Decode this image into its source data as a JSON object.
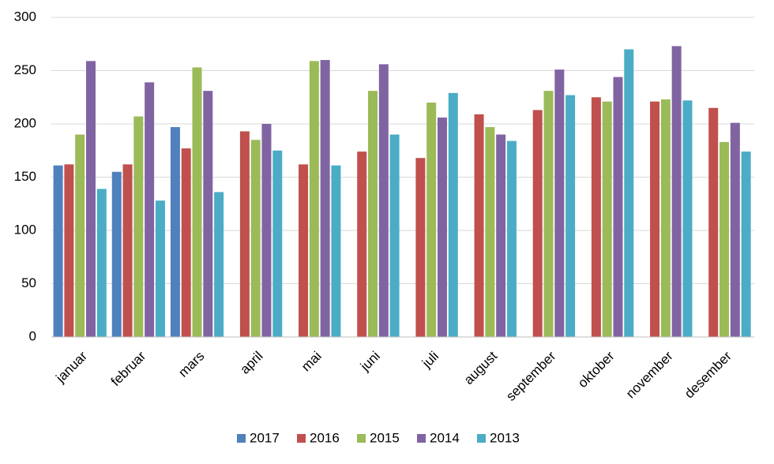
{
  "chart_data": {
    "type": "bar",
    "categories": [
      "januar",
      "februar",
      "mars",
      "april",
      "mai",
      "juni",
      "juli",
      "august",
      "september",
      "oktober",
      "november",
      "desember"
    ],
    "series": [
      {
        "name": "2017",
        "color": "#4f81bd",
        "values": [
          161,
          155,
          197,
          null,
          null,
          null,
          null,
          null,
          null,
          null,
          null,
          null
        ]
      },
      {
        "name": "2016",
        "color": "#c0504d",
        "values": [
          162,
          162,
          177,
          193,
          162,
          174,
          168,
          209,
          213,
          225,
          221,
          215
        ]
      },
      {
        "name": "2015",
        "color": "#9bbb59",
        "values": [
          190,
          207,
          253,
          185,
          259,
          231,
          220,
          197,
          231,
          221,
          223,
          183
        ]
      },
      {
        "name": "2014",
        "color": "#8064a2",
        "values": [
          259,
          239,
          231,
          200,
          260,
          256,
          206,
          190,
          251,
          244,
          273,
          201
        ]
      },
      {
        "name": "2013",
        "color": "#4bacc6",
        "values": [
          139,
          128,
          136,
          175,
          161,
          190,
          229,
          184,
          227,
          270,
          222,
          174
        ]
      }
    ],
    "ylim": [
      0,
      300
    ],
    "yticks": [
      0,
      50,
      100,
      150,
      200,
      250,
      300
    ],
    "grid": true,
    "legend": "bottom"
  }
}
